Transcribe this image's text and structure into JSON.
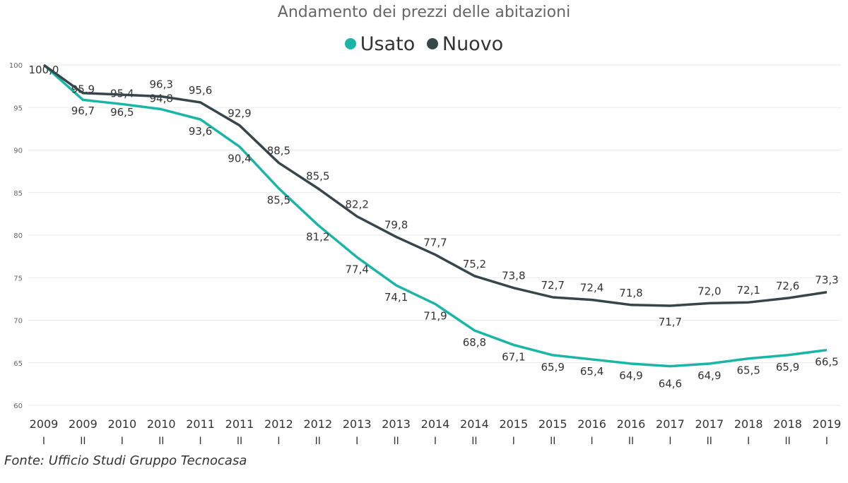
{
  "chart_data": {
    "type": "line",
    "title": "Andamento dei prezzi delle abitazioni",
    "source": "Fonte: Ufficio Studi Gruppo Tecnocasa",
    "categories": [
      [
        "2009",
        "I"
      ],
      [
        "2009",
        "II"
      ],
      [
        "2010",
        "I"
      ],
      [
        "2010",
        "II"
      ],
      [
        "2011",
        "I"
      ],
      [
        "2011",
        "II"
      ],
      [
        "2012",
        "I"
      ],
      [
        "2012",
        "II"
      ],
      [
        "2013",
        "I"
      ],
      [
        "2013",
        "II"
      ],
      [
        "2014",
        "I"
      ],
      [
        "2014",
        "II"
      ],
      [
        "2015",
        "I"
      ],
      [
        "2015",
        "II"
      ],
      [
        "2016",
        "I"
      ],
      [
        "2016",
        "II"
      ],
      [
        "2017",
        "I"
      ],
      [
        "2017",
        "II"
      ],
      [
        "2018",
        "I"
      ],
      [
        "2018",
        "II"
      ],
      [
        "2019",
        "I"
      ]
    ],
    "yticks": [
      60,
      65,
      70,
      75,
      80,
      85,
      90,
      95,
      100
    ],
    "ylim": [
      60,
      100
    ],
    "grid": true,
    "legend_placement": "top",
    "series": [
      {
        "name": "Usato",
        "color": "#1ab5a7",
        "values": [
          100.0,
          95.9,
          95.4,
          94.8,
          93.6,
          90.4,
          85.5,
          81.2,
          77.4,
          74.1,
          71.9,
          68.8,
          67.1,
          65.9,
          65.4,
          64.9,
          64.6,
          64.9,
          65.5,
          65.9,
          66.5
        ]
      },
      {
        "name": "Nuovo",
        "color": "#374649",
        "values": [
          100.0,
          96.7,
          96.5,
          96.3,
          95.6,
          92.9,
          88.5,
          85.5,
          82.2,
          79.8,
          77.7,
          75.2,
          73.8,
          72.7,
          72.4,
          71.8,
          71.7,
          72.0,
          72.1,
          72.6,
          73.3
        ]
      }
    ]
  }
}
